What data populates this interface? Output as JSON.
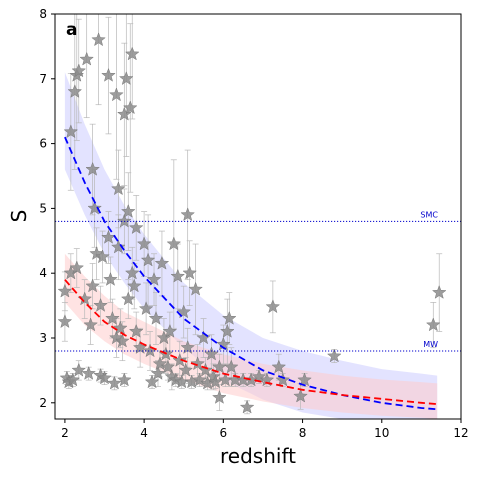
{
  "chart_data": {
    "type": "scatter",
    "panel_label": "a",
    "xlabel": "redshift",
    "ylabel": "S",
    "xlim": [
      1.75,
      12
    ],
    "ylim": [
      1.75,
      8
    ],
    "xticks": [
      2,
      4,
      6,
      8,
      10,
      12
    ],
    "yticks": [
      2,
      3,
      4,
      5,
      6,
      7,
      8
    ],
    "grid": false,
    "reference_lines": [
      {
        "label": "SMC",
        "y": 4.8,
        "color": "#0000cc"
      },
      {
        "label": "MW",
        "y": 2.8,
        "color": "#0000cc"
      }
    ],
    "fits": [
      {
        "color": "#0000ff",
        "band_color": "#ccccff",
        "x": [
          2.0,
          2.5,
          3.0,
          3.5,
          4.0,
          5.0,
          6.0,
          7.0,
          8.0,
          9.0,
          10.0,
          11.0,
          11.4
        ],
        "y": [
          6.1,
          5.4,
          4.8,
          4.35,
          3.95,
          3.3,
          2.85,
          2.5,
          2.28,
          2.12,
          2.0,
          1.92,
          1.9
        ],
        "lower": [
          5.6,
          4.9,
          4.3,
          3.85,
          3.45,
          2.85,
          2.35,
          2.05,
          1.85,
          1.75,
          1.75,
          1.75,
          1.75
        ],
        "upper": [
          7.1,
          6.3,
          5.6,
          5.05,
          4.6,
          3.85,
          3.35,
          3.0,
          2.8,
          2.65,
          2.52,
          2.45,
          2.42
        ]
      },
      {
        "color": "#ff0000",
        "band_color": "#ffcccc",
        "x": [
          2.0,
          2.5,
          3.0,
          3.5,
          4.0,
          5.0,
          6.0,
          7.0,
          8.0,
          9.0,
          10.0,
          11.0,
          11.4
        ],
        "y": [
          3.9,
          3.55,
          3.25,
          3.05,
          2.9,
          2.65,
          2.45,
          2.32,
          2.2,
          2.12,
          2.06,
          2.0,
          1.98
        ],
        "lower": [
          3.55,
          3.2,
          2.95,
          2.75,
          2.6,
          2.35,
          2.15,
          2.02,
          1.92,
          1.85,
          1.8,
          1.77,
          1.75
        ],
        "upper": [
          4.3,
          3.95,
          3.65,
          3.4,
          3.25,
          2.95,
          2.75,
          2.6,
          2.5,
          2.42,
          2.36,
          2.32,
          2.3
        ]
      }
    ],
    "points": [
      {
        "x": 2.0,
        "y": 3.25,
        "err": 0.3
      },
      {
        "x": 2.0,
        "y": 3.72,
        "err": 0.3
      },
      {
        "x": 2.05,
        "y": 2.38,
        "err": 0.1
      },
      {
        "x": 2.1,
        "y": 2.32,
        "err": 0.1
      },
      {
        "x": 2.15,
        "y": 6.18,
        "err": 0.9
      },
      {
        "x": 2.15,
        "y": 4.0,
        "err": 0.3
      },
      {
        "x": 2.2,
        "y": 2.35,
        "err": 0.1
      },
      {
        "x": 2.25,
        "y": 6.8,
        "err": 1.2
      },
      {
        "x": 2.3,
        "y": 7.05,
        "err": 1.0
      },
      {
        "x": 2.35,
        "y": 7.12,
        "err": 0.8
      },
      {
        "x": 2.3,
        "y": 4.08,
        "err": 0.3
      },
      {
        "x": 2.35,
        "y": 2.5,
        "err": 0.15
      },
      {
        "x": 2.5,
        "y": 3.6,
        "err": 0.3
      },
      {
        "x": 2.55,
        "y": 7.3,
        "err": 0.9
      },
      {
        "x": 2.6,
        "y": 2.45,
        "err": 0.1
      },
      {
        "x": 2.65,
        "y": 3.2,
        "err": 0.3
      },
      {
        "x": 2.7,
        "y": 5.6,
        "err": 0.7
      },
      {
        "x": 2.7,
        "y": 3.8,
        "err": 0.35
      },
      {
        "x": 2.75,
        "y": 5.0,
        "err": 0.6
      },
      {
        "x": 2.8,
        "y": 4.3,
        "err": 0.4
      },
      {
        "x": 2.85,
        "y": 7.6,
        "err": 1.0
      },
      {
        "x": 2.9,
        "y": 3.5,
        "err": 0.3
      },
      {
        "x": 2.9,
        "y": 2.42,
        "err": 0.1
      },
      {
        "x": 2.95,
        "y": 4.25,
        "err": 0.4
      },
      {
        "x": 3.0,
        "y": 2.38,
        "err": 0.1
      },
      {
        "x": 3.1,
        "y": 7.05,
        "err": 0.9
      },
      {
        "x": 3.1,
        "y": 4.55,
        "err": 0.4
      },
      {
        "x": 3.15,
        "y": 3.9,
        "err": 0.35
      },
      {
        "x": 3.2,
        "y": 3.3,
        "err": 0.3
      },
      {
        "x": 3.25,
        "y": 2.3,
        "err": 0.1
      },
      {
        "x": 3.3,
        "y": 6.75,
        "err": 1.3
      },
      {
        "x": 3.3,
        "y": 3.0,
        "err": 0.3
      },
      {
        "x": 3.35,
        "y": 5.3,
        "err": 0.6
      },
      {
        "x": 3.35,
        "y": 4.4,
        "err": 0.5
      },
      {
        "x": 3.4,
        "y": 3.15,
        "err": 0.3
      },
      {
        "x": 3.45,
        "y": 2.95,
        "err": 0.3
      },
      {
        "x": 3.5,
        "y": 6.45,
        "err": 1.1
      },
      {
        "x": 3.5,
        "y": 4.8,
        "err": 0.5
      },
      {
        "x": 3.5,
        "y": 2.35,
        "err": 0.1
      },
      {
        "x": 3.55,
        "y": 7.0,
        "err": 1.2
      },
      {
        "x": 3.6,
        "y": 4.95,
        "err": 0.6
      },
      {
        "x": 3.6,
        "y": 3.6,
        "err": 0.3
      },
      {
        "x": 3.65,
        "y": 6.55,
        "err": 1.3
      },
      {
        "x": 3.7,
        "y": 7.38,
        "err": 1.0
      },
      {
        "x": 3.7,
        "y": 4.0,
        "err": 0.4
      },
      {
        "x": 3.75,
        "y": 3.8,
        "err": 0.35
      },
      {
        "x": 3.8,
        "y": 4.7,
        "err": 0.5
      },
      {
        "x": 3.8,
        "y": 3.1,
        "err": 0.3
      },
      {
        "x": 3.9,
        "y": 2.85,
        "err": 0.3
      },
      {
        "x": 4.0,
        "y": 4.45,
        "err": 0.5
      },
      {
        "x": 4.05,
        "y": 3.45,
        "err": 0.4
      },
      {
        "x": 4.1,
        "y": 4.2,
        "err": 0.7
      },
      {
        "x": 4.15,
        "y": 2.8,
        "err": 0.3
      },
      {
        "x": 4.2,
        "y": 2.32,
        "err": 0.1
      },
      {
        "x": 4.25,
        "y": 3.9,
        "err": 0.4
      },
      {
        "x": 4.3,
        "y": 3.3,
        "err": 0.4
      },
      {
        "x": 4.35,
        "y": 2.45,
        "err": 0.2
      },
      {
        "x": 4.4,
        "y": 2.6,
        "err": 0.2
      },
      {
        "x": 4.45,
        "y": 4.15,
        "err": 0.5
      },
      {
        "x": 4.5,
        "y": 3.0,
        "err": 0.3
      },
      {
        "x": 4.55,
        "y": 2.75,
        "err": 0.3
      },
      {
        "x": 4.6,
        "y": 2.55,
        "err": 0.2
      },
      {
        "x": 4.65,
        "y": 3.1,
        "err": 0.3
      },
      {
        "x": 4.7,
        "y": 2.4,
        "err": 0.2
      },
      {
        "x": 4.75,
        "y": 4.45,
        "err": 1.3
      },
      {
        "x": 4.8,
        "y": 2.35,
        "err": 0.1
      },
      {
        "x": 4.85,
        "y": 3.95,
        "err": 0.5
      },
      {
        "x": 4.9,
        "y": 2.65,
        "err": 0.3
      },
      {
        "x": 4.95,
        "y": 2.32,
        "err": 0.1
      },
      {
        "x": 5.0,
        "y": 3.4,
        "err": 0.4
      },
      {
        "x": 5.05,
        "y": 2.5,
        "err": 0.2
      },
      {
        "x": 5.1,
        "y": 4.9,
        "err": 1.0
      },
      {
        "x": 5.1,
        "y": 2.85,
        "err": 0.3
      },
      {
        "x": 5.15,
        "y": 4.0,
        "err": 0.5
      },
      {
        "x": 5.2,
        "y": 2.32,
        "err": 0.1
      },
      {
        "x": 5.3,
        "y": 3.75,
        "err": 0.7
      },
      {
        "x": 5.35,
        "y": 2.6,
        "err": 0.3
      },
      {
        "x": 5.4,
        "y": 2.35,
        "err": 0.1
      },
      {
        "x": 5.5,
        "y": 3.0,
        "err": 0.3
      },
      {
        "x": 5.55,
        "y": 2.5,
        "err": 0.2
      },
      {
        "x": 5.6,
        "y": 2.3,
        "err": 0.1
      },
      {
        "x": 5.7,
        "y": 2.75,
        "err": 0.3
      },
      {
        "x": 5.75,
        "y": 2.4,
        "err": 0.2
      },
      {
        "x": 5.8,
        "y": 2.32,
        "err": 0.1
      },
      {
        "x": 5.9,
        "y": 2.55,
        "err": 0.2
      },
      {
        "x": 5.9,
        "y": 2.08,
        "err": 0.2
      },
      {
        "x": 6.0,
        "y": 2.9,
        "err": 0.3
      },
      {
        "x": 6.05,
        "y": 2.35,
        "err": 0.1
      },
      {
        "x": 6.1,
        "y": 3.1,
        "err": 0.5
      },
      {
        "x": 6.15,
        "y": 3.3,
        "err": 0.4
      },
      {
        "x": 6.2,
        "y": 2.55,
        "err": 0.3
      },
      {
        "x": 6.3,
        "y": 2.35,
        "err": 0.1
      },
      {
        "x": 6.5,
        "y": 2.35,
        "err": 0.1
      },
      {
        "x": 6.6,
        "y": 1.93,
        "err": 0.1
      },
      {
        "x": 6.7,
        "y": 2.35,
        "err": 0.1
      },
      {
        "x": 6.9,
        "y": 2.4,
        "err": 0.1
      },
      {
        "x": 7.1,
        "y": 2.35,
        "err": 0.1
      },
      {
        "x": 7.25,
        "y": 3.48,
        "err": 0.4
      },
      {
        "x": 7.4,
        "y": 2.55,
        "err": 0.2
      },
      {
        "x": 7.5,
        "y": 2.35,
        "err": 0.1
      },
      {
        "x": 7.95,
        "y": 2.1,
        "err": 0.2
      },
      {
        "x": 8.05,
        "y": 2.35,
        "err": 0.1
      },
      {
        "x": 8.8,
        "y": 2.72,
        "err": 0.1
      },
      {
        "x": 11.3,
        "y": 3.2,
        "err": 0.35
      },
      {
        "x": 11.45,
        "y": 3.7,
        "err": 0.6
      }
    ]
  }
}
